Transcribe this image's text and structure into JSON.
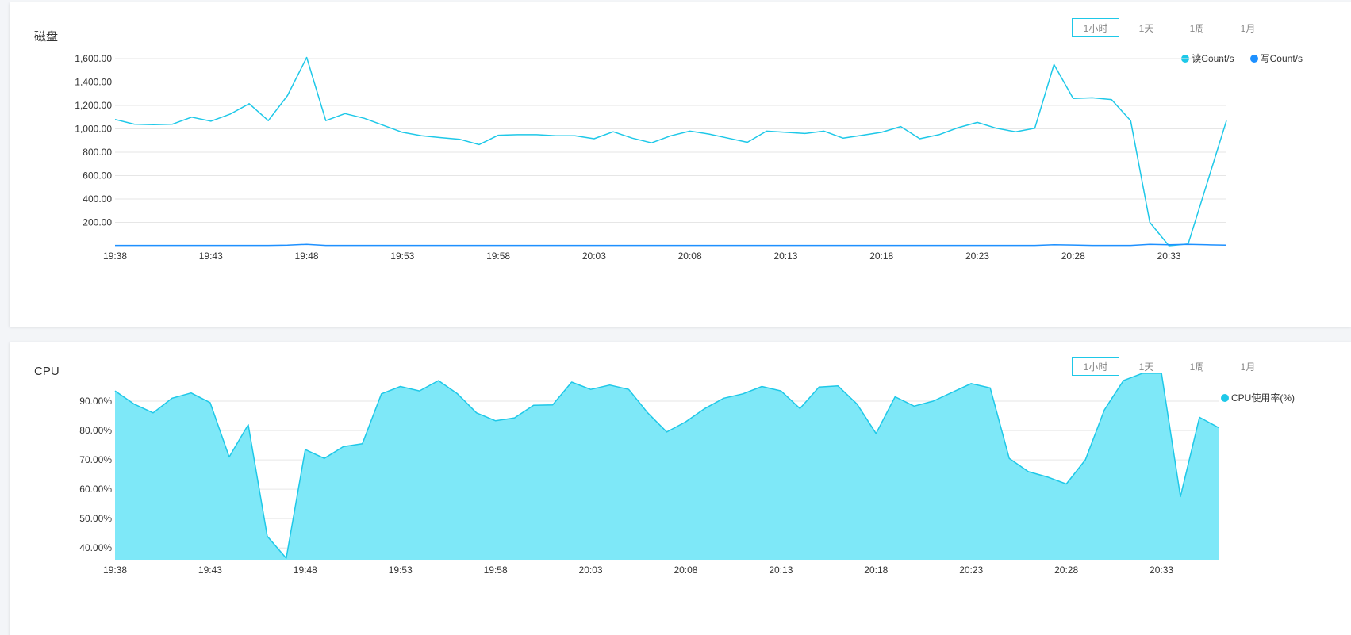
{
  "disk_panel": {
    "title": "磁盘",
    "ranges": [
      "1小时",
      "1天",
      "1周",
      "1月"
    ],
    "active_range": "1小时"
  },
  "cpu_panel": {
    "title": "CPU",
    "ranges": [
      "1小时",
      "1天",
      "1周",
      "1月"
    ],
    "active_range": "1小时"
  },
  "colors": {
    "read": "#1ec8e8",
    "write": "#1e90ff",
    "cpu_line": "#1ec8e8",
    "cpu_fill": "#7ee8f8"
  },
  "chart_data": [
    {
      "type": "line",
      "title": "磁盘",
      "x": [
        "19:38",
        "19:39",
        "19:40",
        "19:41",
        "19:42",
        "19:43",
        "19:44",
        "19:45",
        "19:46",
        "19:47",
        "19:48",
        "19:49",
        "19:50",
        "19:51",
        "19:52",
        "19:53",
        "19:54",
        "19:55",
        "19:56",
        "19:57",
        "19:58",
        "19:59",
        "20:00",
        "20:01",
        "20:02",
        "20:03",
        "20:04",
        "20:05",
        "20:06",
        "20:07",
        "20:08",
        "20:09",
        "20:10",
        "20:11",
        "20:12",
        "20:13",
        "20:14",
        "20:15",
        "20:16",
        "20:17",
        "20:18",
        "20:19",
        "20:20",
        "20:21",
        "20:22",
        "20:23",
        "20:24",
        "20:25",
        "20:26",
        "20:27",
        "20:28",
        "20:29",
        "20:30",
        "20:31",
        "20:32",
        "20:33",
        "20:34",
        "20:35",
        "20:36"
      ],
      "x_ticks": [
        "19:38",
        "19:43",
        "19:48",
        "19:53",
        "19:58",
        "20:03",
        "20:08",
        "20:13",
        "20:18",
        "20:23",
        "20:28",
        "20:33"
      ],
      "y_ticks": [
        "200.00",
        "400.00",
        "600.00",
        "800.00",
        "1,000.00",
        "1,200.00",
        "1,400.00",
        "1,600.00"
      ],
      "ylim": [
        0,
        1600
      ],
      "grid": true,
      "legend_position": "top-right",
      "series": [
        {
          "name": "读Count/s",
          "values": [
            1080,
            1040,
            1035,
            1040,
            1100,
            1065,
            1125,
            1215,
            1070,
            1285,
            1610,
            1070,
            1130,
            1090,
            1030,
            970,
            940,
            925,
            910,
            865,
            945,
            950,
            950,
            940,
            940,
            915,
            975,
            920,
            880,
            940,
            980,
            955,
            920,
            885,
            980,
            970,
            960,
            980,
            920,
            945,
            970,
            1020,
            915,
            950,
            1010,
            1055,
            1005,
            975,
            1005,
            1550,
            1260,
            1265,
            1250,
            1070,
            200,
            0,
            15,
            540,
            1070
          ]
        },
        {
          "name": "写Count/s",
          "values": [
            3,
            3,
            3,
            3,
            3,
            3,
            3,
            3,
            3,
            5,
            12,
            3,
            3,
            3,
            3,
            3,
            3,
            3,
            3,
            3,
            3,
            3,
            3,
            3,
            3,
            3,
            3,
            3,
            3,
            3,
            3,
            3,
            3,
            3,
            3,
            3,
            3,
            3,
            3,
            3,
            3,
            3,
            3,
            3,
            3,
            3,
            3,
            3,
            3,
            8,
            6,
            3,
            3,
            3,
            12,
            8,
            12,
            8,
            5
          ]
        }
      ]
    },
    {
      "type": "area",
      "title": "CPU",
      "x": [
        "19:38",
        "19:39",
        "19:40",
        "19:41",
        "19:42",
        "19:43",
        "19:44",
        "19:45",
        "19:46",
        "19:47",
        "19:48",
        "19:49",
        "19:50",
        "19:51",
        "19:52",
        "19:53",
        "19:54",
        "19:55",
        "19:56",
        "19:57",
        "19:58",
        "19:59",
        "20:00",
        "20:01",
        "20:02",
        "20:03",
        "20:04",
        "20:05",
        "20:06",
        "20:07",
        "20:08",
        "20:09",
        "20:10",
        "20:11",
        "20:12",
        "20:13",
        "20:14",
        "20:15",
        "20:16",
        "20:17",
        "20:18",
        "20:19",
        "20:20",
        "20:21",
        "20:22",
        "20:23",
        "20:24",
        "20:25",
        "20:26",
        "20:27",
        "20:28",
        "20:29",
        "20:30",
        "20:31",
        "20:32",
        "20:33",
        "20:34",
        "20:35",
        "20:36"
      ],
      "x_ticks": [
        "19:38",
        "19:43",
        "19:48",
        "19:53",
        "19:58",
        "20:03",
        "20:08",
        "20:13",
        "20:18",
        "20:23",
        "20:28",
        "20:33"
      ],
      "y_ticks": [
        "40.00%",
        "50.00%",
        "60.00%",
        "70.00%",
        "80.00%",
        "90.00%"
      ],
      "ylim": [
        36,
        100
      ],
      "grid": true,
      "legend_position": "top-right",
      "series": [
        {
          "name": "CPU使用率(%)",
          "values": [
            93.5,
            89,
            86,
            91,
            92.8,
            89.5,
            71,
            82,
            44,
            36.5,
            73.5,
            70.5,
            74.5,
            75.5,
            92.5,
            95,
            93.5,
            97,
            92.5,
            86,
            83.3,
            84.3,
            88.6,
            88.7,
            96.5,
            94,
            95.5,
            94,
            86,
            79.5,
            83,
            87.5,
            91,
            92.5,
            95,
            93.5,
            87.5,
            94.8,
            95.2,
            89,
            79,
            91.5,
            88.3,
            90,
            93,
            96,
            94.5,
            70.5,
            66,
            64.2,
            61.8,
            70,
            87,
            97,
            99.5,
            99.5,
            57.5,
            84.5,
            81
          ]
        }
      ]
    }
  ]
}
